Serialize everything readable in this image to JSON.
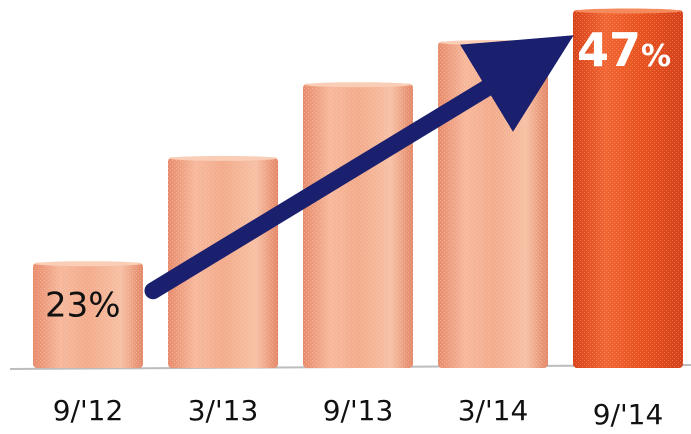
{
  "chart_data": {
    "type": "bar",
    "categories": [
      "9/'12",
      "3/'13",
      "9/'13",
      "3/'14",
      "9/'14"
    ],
    "values": [
      23,
      33,
      40,
      44,
      47
    ],
    "unit": "%",
    "annotations": {
      "start_label": "23%",
      "end_value": "47",
      "end_unit": "%",
      "trend_arrow": {
        "from_category": "9/'12",
        "to_category": "9/'14",
        "color": "#1a1f6e"
      }
    },
    "highlight_category": "9/'14",
    "colors": {
      "bar": "#f0a584",
      "bar_highlight": "#e8531f",
      "arrow": "#1a1f6e"
    }
  }
}
